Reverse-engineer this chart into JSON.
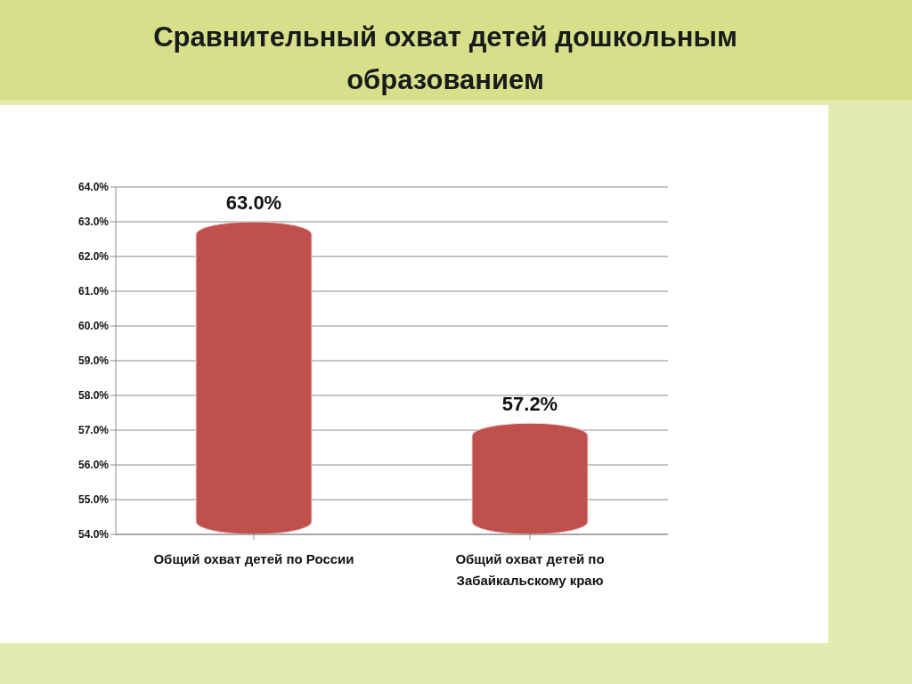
{
  "chart_data": {
    "type": "bar",
    "title": "Сравнительный охват детей дошкольным образованием",
    "categories": [
      "Общий охват детей по России",
      "Общий охват детей по Забайкальскому краю"
    ],
    "values": [
      63.0,
      57.2
    ],
    "color": "#c0504d",
    "ylim": [
      54,
      64
    ],
    "yticks": [
      {
        "value": 54,
        "label": "54.0%"
      },
      {
        "value": 55,
        "label": "55.0%"
      },
      {
        "value": 56,
        "label": "56.0%"
      },
      {
        "value": 57,
        "label": "57.0%"
      },
      {
        "value": 58,
        "label": "58.0%"
      },
      {
        "value": 59,
        "label": "59.0%"
      },
      {
        "value": 60,
        "label": "60.0%"
      },
      {
        "value": 61,
        "label": "61.0%"
      },
      {
        "value": 62,
        "label": "62.0%"
      },
      {
        "value": 63,
        "label": "63.0%"
      },
      {
        "value": 64,
        "label": "64.0%"
      }
    ],
    "grid": "y",
    "value_labels": [
      "63.0%",
      "57.2%"
    ]
  }
}
